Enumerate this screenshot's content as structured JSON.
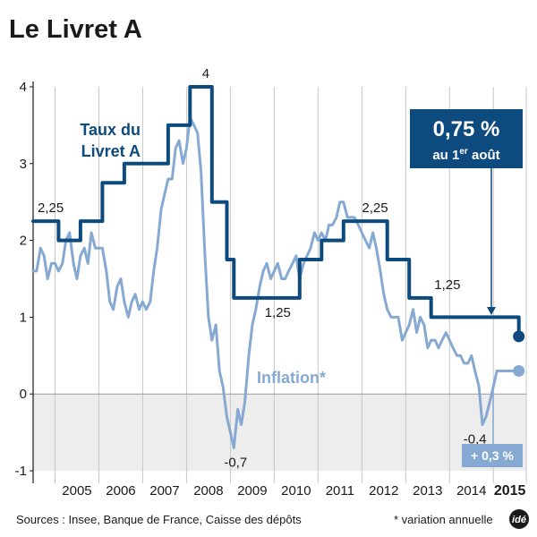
{
  "title": "Le Livret A",
  "footer": {
    "sources": "Sources : Insee, Banque de France, Caisse des dépôts",
    "note": "* variation annuelle",
    "logo": "idé"
  },
  "colors": {
    "rate": "#0d4a7e",
    "inflation": "#86a9d3",
    "negative_band": "#ededed",
    "grid": "#c8c8c8"
  },
  "callouts": {
    "rate_value": "0,75 %",
    "rate_date_prefix": "au 1",
    "rate_date_sup": "er",
    "rate_date_suffix": " août",
    "inflation_value": "+ 0,3 %"
  },
  "chart_data": {
    "type": "line",
    "title": "Le Livret A",
    "xlim": [
      2004.5,
      2015.75
    ],
    "ylim": [
      -1,
      4
    ],
    "yticks": [
      -1,
      0,
      1,
      2,
      3,
      4
    ],
    "x_tick_labels": [
      "2005",
      "2006",
      "2007",
      "2008",
      "2009",
      "2010",
      "2011",
      "2012",
      "2013",
      "2014",
      "2015"
    ],
    "highlighted_x_label": "2015",
    "grid": "vertical year separators",
    "series": [
      {
        "name": "Taux du Livret A",
        "style": "step",
        "color": "#0d4a7e",
        "points": [
          [
            2004.5,
            2.25
          ],
          [
            2005.08,
            2.25
          ],
          [
            2005.08,
            2.0
          ],
          [
            2005.58,
            2.0
          ],
          [
            2005.58,
            2.25
          ],
          [
            2006.08,
            2.25
          ],
          [
            2006.08,
            2.75
          ],
          [
            2006.58,
            2.75
          ],
          [
            2006.58,
            3.0
          ],
          [
            2007.58,
            3.0
          ],
          [
            2007.58,
            3.5
          ],
          [
            2008.08,
            3.5
          ],
          [
            2008.08,
            4.0
          ],
          [
            2008.58,
            4.0
          ],
          [
            2008.58,
            2.5
          ],
          [
            2008.92,
            2.5
          ],
          [
            2008.92,
            1.75
          ],
          [
            2009.08,
            1.75
          ],
          [
            2009.08,
            1.25
          ],
          [
            2010.58,
            1.25
          ],
          [
            2010.58,
            1.75
          ],
          [
            2011.08,
            1.75
          ],
          [
            2011.08,
            2.0
          ],
          [
            2011.58,
            2.0
          ],
          [
            2011.58,
            2.25
          ],
          [
            2012.58,
            2.25
          ],
          [
            2012.58,
            1.75
          ],
          [
            2013.08,
            1.75
          ],
          [
            2013.08,
            1.25
          ],
          [
            2013.58,
            1.25
          ],
          [
            2013.58,
            1.0
          ],
          [
            2015.58,
            1.0
          ],
          [
            2015.58,
            0.75
          ]
        ],
        "end_marker": [
          2015.58,
          0.75
        ]
      },
      {
        "name": "Inflation*",
        "style": "line",
        "color": "#86a9d3",
        "points": [
          [
            2004.5,
            1.6
          ],
          [
            2004.58,
            1.6
          ],
          [
            2004.67,
            1.9
          ],
          [
            2004.75,
            1.8
          ],
          [
            2004.83,
            1.5
          ],
          [
            2004.92,
            1.7
          ],
          [
            2005.0,
            1.7
          ],
          [
            2005.08,
            1.6
          ],
          [
            2005.17,
            1.7
          ],
          [
            2005.25,
            2.0
          ],
          [
            2005.33,
            2.1
          ],
          [
            2005.42,
            1.7
          ],
          [
            2005.5,
            1.5
          ],
          [
            2005.58,
            1.8
          ],
          [
            2005.67,
            1.9
          ],
          [
            2005.75,
            1.7
          ],
          [
            2005.83,
            2.1
          ],
          [
            2005.92,
            1.9
          ],
          [
            2006.0,
            1.9
          ],
          [
            2006.08,
            1.9
          ],
          [
            2006.17,
            1.6
          ],
          [
            2006.25,
            1.2
          ],
          [
            2006.33,
            1.1
          ],
          [
            2006.42,
            1.4
          ],
          [
            2006.5,
            1.5
          ],
          [
            2006.58,
            1.2
          ],
          [
            2006.67,
            1.0
          ],
          [
            2006.75,
            1.2
          ],
          [
            2006.83,
            1.3
          ],
          [
            2006.92,
            1.1
          ],
          [
            2007.0,
            1.2
          ],
          [
            2007.08,
            1.1
          ],
          [
            2007.17,
            1.2
          ],
          [
            2007.25,
            1.6
          ],
          [
            2007.33,
            1.9
          ],
          [
            2007.42,
            2.4
          ],
          [
            2007.5,
            2.6
          ],
          [
            2007.58,
            2.8
          ],
          [
            2007.67,
            2.8
          ],
          [
            2007.75,
            3.2
          ],
          [
            2007.83,
            3.3
          ],
          [
            2007.92,
            3.0
          ],
          [
            2008.0,
            3.2
          ],
          [
            2008.08,
            3.6
          ],
          [
            2008.17,
            3.5
          ],
          [
            2008.25,
            3.4
          ],
          [
            2008.33,
            2.9
          ],
          [
            2008.42,
            1.8
          ],
          [
            2008.5,
            1.0
          ],
          [
            2008.58,
            0.7
          ],
          [
            2008.67,
            0.9
          ],
          [
            2008.75,
            0.3
          ],
          [
            2008.83,
            0.1
          ],
          [
            2008.92,
            -0.3
          ],
          [
            2009.0,
            -0.5
          ],
          [
            2009.08,
            -0.7
          ],
          [
            2009.17,
            -0.2
          ],
          [
            2009.25,
            -0.4
          ],
          [
            2009.33,
            -0.1
          ],
          [
            2009.42,
            0.5
          ],
          [
            2009.5,
            0.9
          ],
          [
            2009.58,
            1.1
          ],
          [
            2009.67,
            1.4
          ],
          [
            2009.75,
            1.6
          ],
          [
            2009.83,
            1.7
          ],
          [
            2009.92,
            1.5
          ],
          [
            2010.0,
            1.6
          ],
          [
            2010.08,
            1.7
          ],
          [
            2010.17,
            1.5
          ],
          [
            2010.25,
            1.5
          ],
          [
            2010.33,
            1.6
          ],
          [
            2010.42,
            1.7
          ],
          [
            2010.5,
            1.8
          ],
          [
            2010.58,
            1.5
          ],
          [
            2010.67,
            1.7
          ],
          [
            2010.75,
            1.8
          ],
          [
            2010.83,
            1.9
          ],
          [
            2010.92,
            2.1
          ],
          [
            2011.0,
            2.0
          ],
          [
            2011.08,
            2.1
          ],
          [
            2011.17,
            2.0
          ],
          [
            2011.25,
            2.2
          ],
          [
            2011.33,
            2.2
          ],
          [
            2011.42,
            2.3
          ],
          [
            2011.5,
            2.5
          ],
          [
            2011.58,
            2.5
          ],
          [
            2011.67,
            2.3
          ],
          [
            2011.75,
            2.3
          ],
          [
            2011.83,
            2.3
          ],
          [
            2011.92,
            2.2
          ],
          [
            2012.0,
            2.1
          ],
          [
            2012.08,
            2.0
          ],
          [
            2012.17,
            1.9
          ],
          [
            2012.25,
            2.1
          ],
          [
            2012.33,
            1.9
          ],
          [
            2012.42,
            1.6
          ],
          [
            2012.5,
            1.3
          ],
          [
            2012.58,
            1.1
          ],
          [
            2012.67,
            1.0
          ],
          [
            2012.75,
            1.0
          ],
          [
            2012.83,
            1.0
          ],
          [
            2012.92,
            0.7
          ],
          [
            2013.0,
            0.8
          ],
          [
            2013.08,
            0.9
          ],
          [
            2013.17,
            1.1
          ],
          [
            2013.25,
            0.8
          ],
          [
            2013.33,
            1.0
          ],
          [
            2013.42,
            0.9
          ],
          [
            2013.5,
            0.6
          ],
          [
            2013.58,
            0.7
          ],
          [
            2013.67,
            0.7
          ],
          [
            2013.75,
            0.6
          ],
          [
            2013.83,
            0.7
          ],
          [
            2013.92,
            0.8
          ],
          [
            2014.0,
            0.7
          ],
          [
            2014.08,
            0.6
          ],
          [
            2014.17,
            0.5
          ],
          [
            2014.25,
            0.5
          ],
          [
            2014.33,
            0.4
          ],
          [
            2014.42,
            0.4
          ],
          [
            2014.5,
            0.5
          ],
          [
            2014.58,
            0.3
          ],
          [
            2014.67,
            0.1
          ],
          [
            2014.75,
            -0.4
          ],
          [
            2014.83,
            -0.3
          ],
          [
            2014.92,
            -0.1
          ],
          [
            2015.0,
            0.1
          ],
          [
            2015.08,
            0.3
          ],
          [
            2015.33,
            0.3
          ],
          [
            2015.58,
            0.3
          ]
        ],
        "end_marker": [
          2015.58,
          0.3
        ]
      }
    ],
    "annotations": [
      {
        "text": "2,25",
        "x": 2004.9,
        "y": 2.25,
        "pos": "above"
      },
      {
        "text": "4",
        "x": 2008.44,
        "y": 4.0,
        "pos": "above"
      },
      {
        "text": "-0,7",
        "x": 2009.12,
        "y": -0.7,
        "pos": "below"
      },
      {
        "text": "1,25",
        "x": 2010.08,
        "y": 1.25,
        "pos": "below"
      },
      {
        "text": "2,25",
        "x": 2012.3,
        "y": 2.25,
        "pos": "above"
      },
      {
        "text": "1,25",
        "x": 2013.95,
        "y": 1.25,
        "pos": "above"
      },
      {
        "text": "-0,4",
        "x": 2014.58,
        "y": -0.4,
        "pos": "below"
      }
    ],
    "series_labels": [
      {
        "text_lines": [
          "Taux du",
          "Livret A"
        ],
        "series": "Taux du Livret A"
      },
      {
        "text_lines": [
          "Inflation*"
        ],
        "series": "Inflation*"
      }
    ]
  }
}
